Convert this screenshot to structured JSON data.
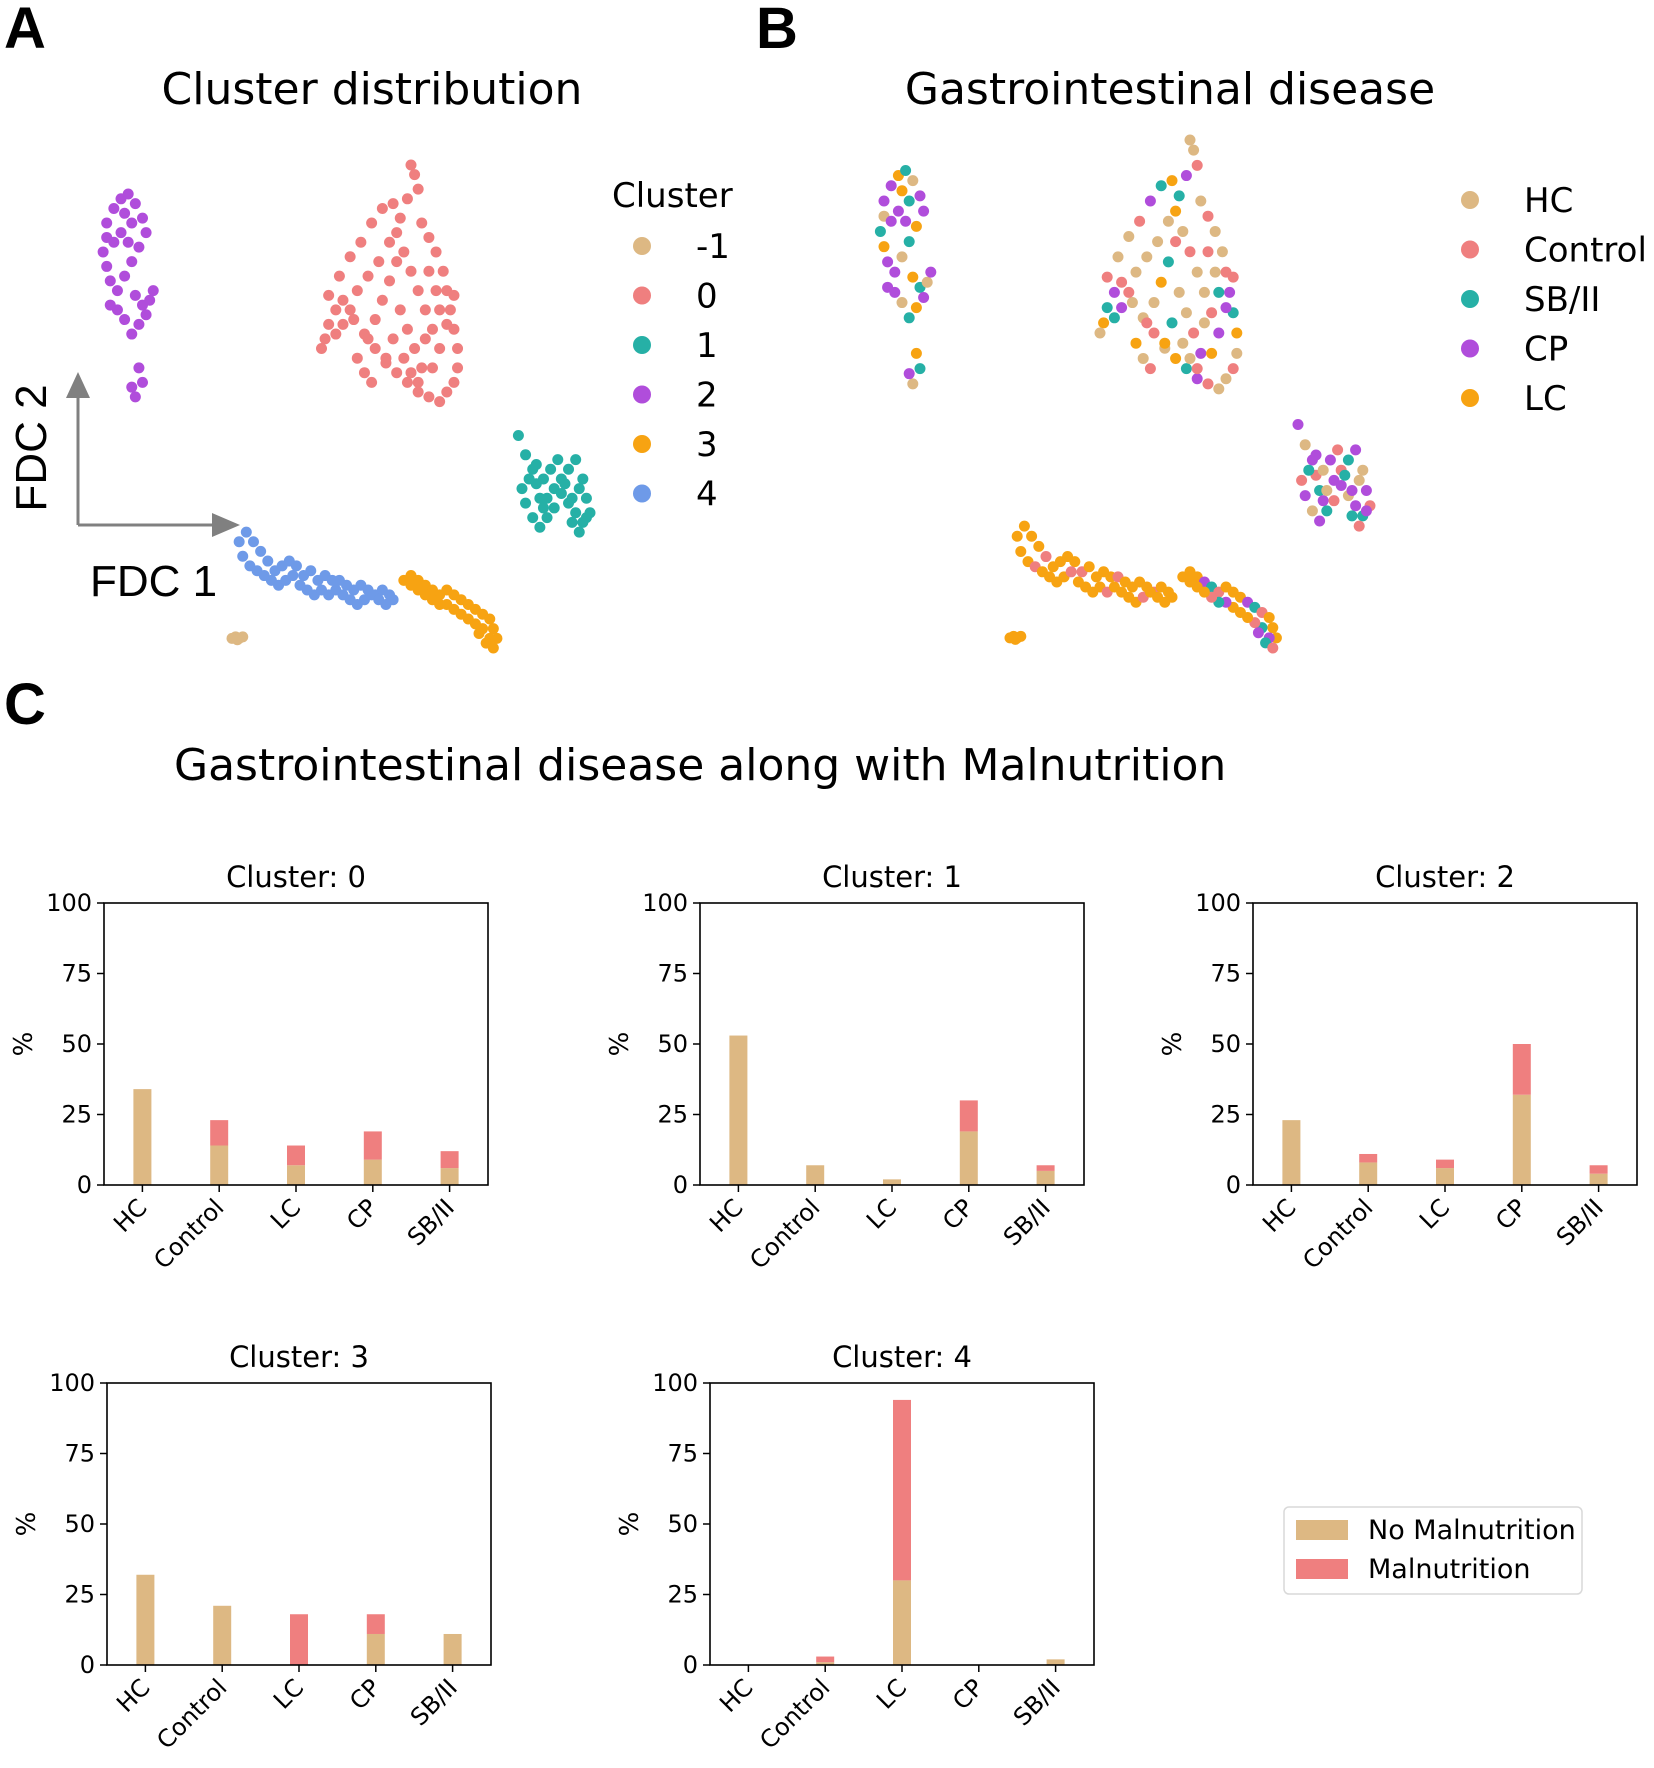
{
  "panels": {
    "a": {
      "letter": "A",
      "title": "Cluster distribution",
      "axis_x": "FDC 1",
      "axis_y": "FDC 2",
      "legend_title": "Cluster",
      "legend": [
        {
          "label": "-1",
          "color": "#DDB883"
        },
        {
          "label": "0",
          "color": "#EF7F7F"
        },
        {
          "label": "1",
          "color": "#26B0A6"
        },
        {
          "label": "2",
          "color": "#B04DDB"
        },
        {
          "label": "3",
          "color": "#F7A312"
        },
        {
          "label": "4",
          "color": "#6E9AE8"
        }
      ]
    },
    "b": {
      "letter": "B",
      "title": "Gastrointestinal disease",
      "legend": [
        {
          "label": "HC",
          "color": "#DDB883"
        },
        {
          "label": "Control",
          "color": "#EF7F7F"
        },
        {
          "label": "SB/II",
          "color": "#26B0A6"
        },
        {
          "label": "CP",
          "color": "#B04DDB"
        },
        {
          "label": "LC",
          "color": "#F7A312"
        }
      ]
    },
    "c": {
      "letter": "C",
      "title": "Gastrointestinal disease along with Malnutrition",
      "legend": [
        {
          "label": "No Malnutrition",
          "color": "#DDB883"
        },
        {
          "label": "Malnutrition",
          "color": "#EF7F7F"
        }
      ]
    }
  },
  "chart_data": [
    {
      "type": "bar",
      "stacked": true,
      "title": "Cluster: 0",
      "categories": [
        "HC",
        "Control",
        "LC",
        "CP",
        "SB/II"
      ],
      "series": [
        {
          "name": "No Malnutrition",
          "values": [
            34,
            14,
            7,
            9,
            6
          ]
        },
        {
          "name": "Malnutrition",
          "values": [
            0,
            9,
            7,
            10,
            6
          ]
        }
      ],
      "ylabel": "%",
      "ylim": [
        0,
        100
      ],
      "yticks": [
        0,
        25,
        50,
        75,
        100
      ]
    },
    {
      "type": "bar",
      "stacked": true,
      "title": "Cluster: 1",
      "categories": [
        "HC",
        "Control",
        "LC",
        "CP",
        "SB/II"
      ],
      "series": [
        {
          "name": "No Malnutrition",
          "values": [
            53,
            7,
            2,
            19,
            5
          ]
        },
        {
          "name": "Malnutrition",
          "values": [
            0,
            0,
            0,
            11,
            2
          ]
        }
      ],
      "ylabel": "%",
      "ylim": [
        0,
        100
      ],
      "yticks": [
        0,
        25,
        50,
        75,
        100
      ]
    },
    {
      "type": "bar",
      "stacked": true,
      "title": "Cluster: 2",
      "categories": [
        "HC",
        "Control",
        "LC",
        "CP",
        "SB/II"
      ],
      "series": [
        {
          "name": "No Malnutrition",
          "values": [
            23,
            8,
            6,
            32,
            4
          ]
        },
        {
          "name": "Malnutrition",
          "values": [
            0,
            3,
            3,
            18,
            3
          ]
        }
      ],
      "ylabel": "%",
      "ylim": [
        0,
        100
      ],
      "yticks": [
        0,
        25,
        50,
        75,
        100
      ]
    },
    {
      "type": "bar",
      "stacked": true,
      "title": "Cluster: 3",
      "categories": [
        "HC",
        "Control",
        "LC",
        "CP",
        "SB/II"
      ],
      "series": [
        {
          "name": "No Malnutrition",
          "values": [
            32,
            21,
            0,
            11,
            11
          ]
        },
        {
          "name": "Malnutrition",
          "values": [
            0,
            0,
            18,
            7,
            0
          ]
        }
      ],
      "ylabel": "%",
      "ylim": [
        0,
        100
      ],
      "yticks": [
        0,
        25,
        50,
        75,
        100
      ]
    },
    {
      "type": "bar",
      "stacked": true,
      "title": "Cluster: 4",
      "categories": [
        "HC",
        "Control",
        "LC",
        "CP",
        "SB/II"
      ],
      "series": [
        {
          "name": "No Malnutrition",
          "values": [
            0,
            1,
            30,
            0,
            2
          ]
        },
        {
          "name": "Malnutrition",
          "values": [
            0,
            2,
            64,
            0,
            0
          ]
        }
      ],
      "ylabel": "%",
      "ylim": [
        0,
        100
      ],
      "yticks": [
        0,
        25,
        50,
        75,
        100
      ]
    },
    {
      "type": "scatter",
      "title": "Cluster distribution",
      "xlabel": "FDC 1",
      "ylabel": "FDC 2",
      "xlim": [
        0,
        100
      ],
      "ylim": [
        0,
        100
      ],
      "series": [
        {
          "name": "-1",
          "points": [
            [
              0,
              2
            ],
            [
              1,
              2.3
            ],
            [
              2,
              2
            ],
            [
              3,
              2.3
            ],
            [
              1.5,
              1.7
            ]
          ]
        },
        {
          "name": "0",
          "points": [
            [
              50,
              100
            ],
            [
              51,
              98
            ],
            [
              52,
              95
            ],
            [
              49,
              93
            ],
            [
              47,
              89
            ],
            [
              45,
              92
            ],
            [
              53,
              88
            ],
            [
              55,
              85
            ],
            [
              57,
              82
            ],
            [
              59,
              78
            ],
            [
              60,
              74
            ],
            [
              61,
              70
            ],
            [
              62,
              66
            ],
            [
              63,
              62
            ],
            [
              63,
              58
            ],
            [
              62,
              55
            ],
            [
              60,
              53
            ],
            [
              58,
              51
            ],
            [
              55,
              52
            ],
            [
              52,
              53
            ],
            [
              49,
              55
            ],
            [
              46,
              57
            ],
            [
              43,
              59
            ],
            [
              40,
              62
            ],
            [
              37,
              65
            ],
            [
              34,
              68
            ],
            [
              31,
              72
            ],
            [
              29,
              70
            ],
            [
              27,
              67
            ],
            [
              26,
              64
            ],
            [
              25,
              62
            ],
            [
              27,
              73
            ],
            [
              30,
              77
            ],
            [
              33,
              81
            ],
            [
              36,
              84
            ],
            [
              39,
              88
            ],
            [
              42,
              91
            ],
            [
              46,
              86
            ],
            [
              48,
              82
            ],
            [
              50,
              78
            ],
            [
              52,
              74
            ],
            [
              54,
              70
            ],
            [
              56,
              66
            ],
            [
              58,
              62
            ],
            [
              44,
              76
            ],
            [
              42,
              72
            ],
            [
              40,
              68
            ],
            [
              38,
              64
            ],
            [
              47,
              70
            ],
            [
              49,
              66
            ],
            [
              51,
              62
            ],
            [
              53,
              58
            ],
            [
              45,
              64
            ],
            [
              43,
              60
            ],
            [
              57,
              74
            ],
            [
              55,
              78
            ],
            [
              41,
              80
            ],
            [
              35,
              74
            ],
            [
              33,
              70
            ],
            [
              31,
              67
            ],
            [
              29,
              65
            ],
            [
              35,
              60
            ],
            [
              37,
              57
            ],
            [
              39,
              55
            ],
            [
              48,
              60
            ],
            [
              50,
              57
            ],
            [
              52,
              55
            ],
            [
              60,
              67
            ],
            [
              58,
              70
            ],
            [
              56,
              58
            ],
            [
              54,
              64
            ],
            [
              46,
              80
            ],
            [
              44,
              84
            ],
            [
              38,
              77
            ],
            [
              62,
              73
            ]
          ]
        },
        {
          "name": "1",
          "points": [
            [
              80,
              44
            ],
            [
              82,
              40
            ],
            [
              84,
              37
            ],
            [
              85,
              34
            ],
            [
              86,
              31
            ],
            [
              87,
              29
            ],
            [
              88,
              31
            ],
            [
              90,
              33
            ],
            [
              92,
              35
            ],
            [
              94,
              37
            ],
            [
              96,
              39
            ],
            [
              98,
              35
            ],
            [
              99,
              31
            ],
            [
              100,
              28
            ],
            [
              98,
              26
            ],
            [
              96,
              28
            ],
            [
              94,
              30
            ],
            [
              92,
              32
            ],
            [
              90,
              29
            ],
            [
              88,
              27
            ],
            [
              86,
              25
            ],
            [
              84,
              27
            ],
            [
              82,
              30
            ],
            [
              81,
              33
            ],
            [
              83,
              35
            ],
            [
              85,
              38
            ],
            [
              87,
              35
            ],
            [
              89,
              37
            ],
            [
              91,
              39
            ],
            [
              93,
              34
            ],
            [
              95,
              31
            ],
            [
              97,
              33
            ],
            [
              99,
              27
            ],
            [
              97,
              24
            ],
            [
              95,
              26
            ]
          ]
        },
        {
          "name": "2",
          "points": [
            [
              -35,
              88
            ],
            [
              -33,
              91
            ],
            [
              -31,
              93
            ],
            [
              -29,
              94
            ],
            [
              -27,
              92
            ],
            [
              -25,
              89
            ],
            [
              -24,
              86
            ],
            [
              -26,
              83
            ],
            [
              -28,
              80
            ],
            [
              -30,
              77
            ],
            [
              -32,
              74
            ],
            [
              -34,
              76
            ],
            [
              -35,
              79
            ],
            [
              -36,
              82
            ],
            [
              -35,
              85
            ],
            [
              -31,
              86
            ],
            [
              -29,
              84
            ],
            [
              -27,
              73
            ],
            [
              -25,
              71
            ],
            [
              -23,
              72
            ],
            [
              -22,
              74
            ],
            [
              -24,
              69
            ],
            [
              -26,
              67
            ],
            [
              -28,
              65
            ],
            [
              -30,
              68
            ],
            [
              -32,
              70
            ],
            [
              -34,
              71
            ],
            [
              -26,
              58
            ],
            [
              -25,
              55
            ],
            [
              -27,
              52
            ],
            [
              -28,
              54
            ],
            [
              -33,
              84
            ],
            [
              -30,
              90
            ],
            [
              -28,
              88
            ]
          ]
        },
        {
          "name": "3",
          "points": [
            [
              48,
              14
            ],
            [
              50,
              15
            ],
            [
              52,
              14
            ],
            [
              54,
              13
            ],
            [
              56,
              12
            ],
            [
              58,
              11
            ],
            [
              60,
              12
            ],
            [
              62,
              11
            ],
            [
              64,
              10
            ],
            [
              66,
              9
            ],
            [
              68,
              8
            ],
            [
              70,
              7
            ],
            [
              72,
              6
            ],
            [
              73,
              4
            ],
            [
              74,
              2
            ],
            [
              72,
              2
            ],
            [
              70,
              4
            ],
            [
              68,
              5
            ],
            [
              66,
              6
            ],
            [
              64,
              7
            ],
            [
              62,
              8
            ],
            [
              60,
              9
            ],
            [
              58,
              9
            ],
            [
              56,
              10
            ],
            [
              54,
              11
            ],
            [
              52,
              12
            ],
            [
              50,
              13
            ],
            [
              69,
              3
            ],
            [
              71,
              1
            ],
            [
              73,
              0
            ]
          ]
        },
        {
          "name": "4",
          "points": [
            [
              2,
              22
            ],
            [
              4,
              24
            ],
            [
              6,
              22
            ],
            [
              8,
              20
            ],
            [
              10,
              18
            ],
            [
              12,
              16
            ],
            [
              14,
              17
            ],
            [
              16,
              18
            ],
            [
              18,
              17
            ],
            [
              20,
              15
            ],
            [
              22,
              16
            ],
            [
              24,
              14
            ],
            [
              26,
              15
            ],
            [
              28,
              14
            ],
            [
              30,
              14
            ],
            [
              32,
              13
            ],
            [
              34,
              12
            ],
            [
              36,
              13
            ],
            [
              38,
              12
            ],
            [
              40,
              11
            ],
            [
              42,
              12
            ],
            [
              44,
              11
            ],
            [
              3,
              19
            ],
            [
              5,
              17
            ],
            [
              7,
              16
            ],
            [
              9,
              15
            ],
            [
              11,
              14
            ],
            [
              13,
              13
            ],
            [
              15,
              14
            ],
            [
              17,
              15
            ],
            [
              19,
              13
            ],
            [
              21,
              12
            ],
            [
              23,
              11
            ],
            [
              25,
              12
            ],
            [
              27,
              11
            ],
            [
              29,
              12
            ],
            [
              31,
              11
            ],
            [
              33,
              10
            ],
            [
              35,
              9
            ],
            [
              37,
              10
            ],
            [
              39,
              11
            ],
            [
              41,
              10
            ],
            [
              43,
              9
            ],
            [
              45,
              10
            ]
          ]
        }
      ]
    }
  ]
}
